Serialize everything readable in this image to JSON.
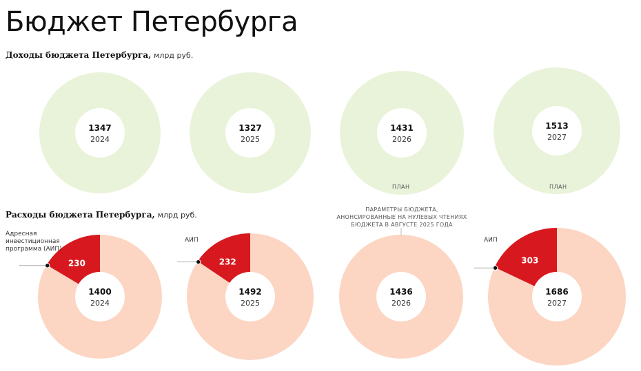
{
  "title": "Бюджет Петербурга",
  "income_heading": {
    "bold": "Доходы бюджета Петербурга,",
    "unit": "млрд руб."
  },
  "expense_heading": {
    "bold": "Расходы бюджета Петербурга,",
    "unit": "млрд руб."
  },
  "annotations": {
    "aip_long": "Адресная инвестиционная программа (АИП)",
    "aip_short": "АИП",
    "plan": "ПЛАН",
    "params": "ПАРАМЕТРЫ БЮДЖЕТА, АНОНСИРОВАННЫЕ НА НУЛЕВЫХ ЧТЕНИЯХ БЮДЖЕТА В АВГУСТЕ 2025 ГОДА"
  },
  "colors": {
    "income_ring": "#e9f3d9",
    "expense_ring": "#fcd5c3",
    "aip": "#d7191f"
  },
  "chart_data": [
    {
      "type": "pie",
      "title": "Доходы бюджета Петербурга",
      "unit": "млрд руб.",
      "categories": [
        "2024",
        "2025",
        "2026",
        "2027"
      ],
      "values": [
        1347,
        1327,
        1431,
        1513
      ],
      "plan": [
        false,
        false,
        true,
        true
      ]
    },
    {
      "type": "pie",
      "title": "Расходы бюджета Петербурга",
      "unit": "млрд руб.",
      "categories": [
        "2024",
        "2025",
        "2026",
        "2027"
      ],
      "values": [
        1400,
        1492,
        1436,
        1686
      ],
      "series": [
        {
          "name": "Адресная инвестиционная программа (АИП)",
          "values": [
            230,
            232,
            null,
            303
          ]
        }
      ]
    }
  ]
}
